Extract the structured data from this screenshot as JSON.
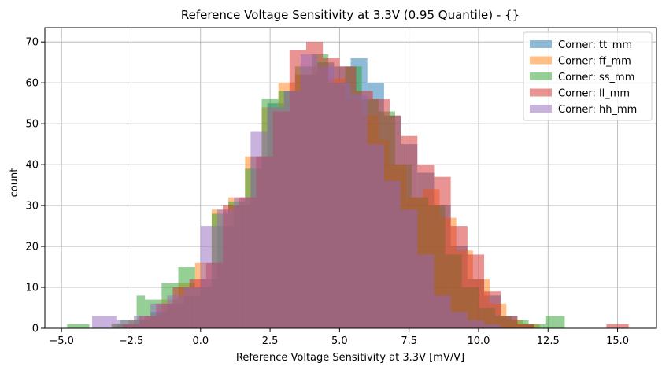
{
  "chart_data": {
    "type": "histogram",
    "title": "Reference Voltage Sensitivity at 3.3V (0.95 Quantile) - {}",
    "xlabel": "Reference Voltage Sensitivity at 3.3V [mV/V]",
    "ylabel": "count",
    "xlim": [
      -5.6,
      16.4
    ],
    "ylim": [
      0,
      73.5
    ],
    "xticks": [
      -5.0,
      -2.5,
      0.0,
      2.5,
      5.0,
      7.5,
      10.0,
      12.5,
      15.0
    ],
    "xtick_labels": [
      "−5.0",
      "−2.5",
      "0.0",
      "2.5",
      "5.0",
      "7.5",
      "10.0",
      "12.5",
      "15.0"
    ],
    "yticks": [
      0,
      10,
      20,
      30,
      40,
      50,
      60,
      70
    ],
    "ytick_labels": [
      "0",
      "10",
      "20",
      "30",
      "40",
      "50",
      "60",
      "70"
    ],
    "grid": true,
    "legend_position": "top-right",
    "series": [
      {
        "name": "Corner: tt_mm",
        "color": "#1f77b4",
        "edges": [
          -3.0,
          -2.4,
          -1.8,
          -1.2,
          -0.6,
          0.0,
          0.6,
          1.2,
          1.8,
          2.4,
          3.0,
          3.6,
          4.2,
          4.8,
          5.4,
          6.0,
          6.6,
          7.2,
          7.8,
          8.4,
          9.0,
          9.6,
          10.2,
          10.8,
          11.4,
          12.0
        ],
        "counts": [
          1,
          2,
          4,
          6,
          8,
          12,
          25,
          30,
          42,
          55,
          58,
          62,
          65,
          64,
          66,
          60,
          52,
          45,
          38,
          30,
          20,
          12,
          8,
          3,
          1
        ]
      },
      {
        "name": "Corner: ff_mm",
        "color": "#ff7f0e",
        "edges": [
          -3.2,
          -2.6,
          -2.0,
          -1.4,
          -0.8,
          -0.2,
          0.4,
          1.0,
          1.6,
          2.2,
          2.8,
          3.4,
          4.0,
          4.6,
          5.2,
          5.8,
          6.4,
          6.8,
          7.4,
          8.0,
          8.6,
          9.2,
          9.8,
          10.4,
          11.0,
          11.6,
          12.2
        ],
        "counts": [
          1,
          2,
          3,
          7,
          11,
          16,
          29,
          32,
          42,
          54,
          60,
          62,
          64,
          61,
          56,
          52,
          46,
          40,
          32,
          34,
          27,
          19,
          12,
          6,
          2,
          1
        ]
      },
      {
        "name": "Corner: ss_mm",
        "color": "#2ca02c",
        "edges": [
          -4.8,
          -4.0,
          -3.2,
          -2.9,
          -2.3,
          -2.0,
          -1.4,
          -0.8,
          -0.2,
          0.4,
          1.0,
          1.6,
          2.2,
          2.8,
          3.4,
          4.0,
          4.6,
          5.2,
          5.8,
          6.4,
          7.0,
          7.6,
          8.2,
          8.8,
          9.4,
          10.0,
          10.6,
          11.2,
          11.8,
          12.4,
          13.1
        ],
        "counts": [
          1,
          0,
          1,
          2,
          8,
          7,
          11,
          15,
          10,
          28,
          31,
          39,
          56,
          58,
          64,
          67,
          60,
          64,
          56,
          53,
          40,
          32,
          30,
          18,
          10,
          5,
          3,
          2,
          1,
          3
        ]
      },
      {
        "name": "Corner: ll_mm",
        "color": "#d62728",
        "edges": [
          -2.8,
          -2.2,
          -1.6,
          -1.0,
          -0.4,
          0.2,
          0.8,
          1.4,
          2.0,
          2.6,
          3.2,
          3.8,
          4.4,
          5.0,
          5.6,
          6.2,
          6.8,
          7.2,
          7.8,
          8.4,
          9.0,
          9.6,
          10.2,
          10.8,
          11.4,
          12.0,
          14.6,
          15.4
        ],
        "counts": [
          1,
          3,
          6,
          10,
          12,
          16,
          30,
          32,
          42,
          53,
          68,
          70,
          66,
          64,
          58,
          56,
          52,
          47,
          40,
          37,
          25,
          18,
          9,
          3,
          1,
          0,
          1
        ]
      },
      {
        "name": "Corner: hh_mm",
        "color": "#9467bd",
        "edges": [
          -3.9,
          -3.0,
          -2.4,
          -1.8,
          -1.2,
          -0.6,
          0.0,
          0.6,
          1.2,
          1.8,
          2.4,
          3.0,
          3.6,
          4.2,
          4.8,
          5.4,
          6.0,
          6.6,
          7.2,
          7.8,
          8.4,
          9.0,
          9.6,
          10.2,
          10.8
        ],
        "counts": [
          3,
          2,
          3,
          6,
          8,
          10,
          25,
          29,
          32,
          48,
          54,
          58,
          67,
          64,
          60,
          57,
          45,
          36,
          29,
          18,
          8,
          4,
          2,
          1
        ]
      }
    ]
  }
}
